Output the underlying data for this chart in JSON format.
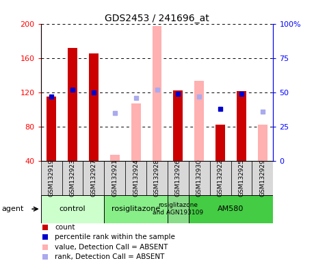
{
  "title": "GDS2453 / 241696_at",
  "samples": [
    "GSM132919",
    "GSM132923",
    "GSM132927",
    "GSM132921",
    "GSM132924",
    "GSM132928",
    "GSM132926",
    "GSM132930",
    "GSM132922",
    "GSM132925",
    "GSM132929"
  ],
  "count_values": [
    115,
    172,
    165,
    null,
    null,
    null,
    122,
    null,
    82,
    121,
    null
  ],
  "count_absent_values": [
    null,
    null,
    null,
    47,
    107,
    null,
    null,
    133,
    null,
    null,
    82
  ],
  "pct_rank_values": [
    47,
    52,
    50,
    null,
    null,
    null,
    49,
    null,
    38,
    49,
    null
  ],
  "pct_rank_absent_values": [
    null,
    null,
    null,
    35,
    46,
    52,
    null,
    47,
    null,
    null,
    36
  ],
  "absent_bar_gsm132928": 197,
  "ylim_left": [
    40,
    200
  ],
  "ylim_right": [
    0,
    100
  ],
  "yticks_left": [
    40,
    80,
    120,
    160,
    200
  ],
  "yticks_right": [
    0,
    25,
    50,
    75,
    100
  ],
  "count_color": "#cc0000",
  "count_absent_color": "#ffb0b0",
  "rank_color": "#0000cc",
  "rank_absent_color": "#aaaaee",
  "agent_groups": [
    {
      "label": "control",
      "start": 0,
      "end": 3,
      "color": "#ccffcc"
    },
    {
      "label": "rosiglitazone",
      "start": 3,
      "end": 6,
      "color": "#88ee88"
    },
    {
      "label": "rosiglitazone\nand AGN193109",
      "start": 6,
      "end": 7,
      "color": "#88dd88"
    },
    {
      "label": "AM580",
      "start": 7,
      "end": 11,
      "color": "#44cc44"
    }
  ],
  "plot_bg": "#ffffff",
  "label_box_color": "#d8d8d8"
}
